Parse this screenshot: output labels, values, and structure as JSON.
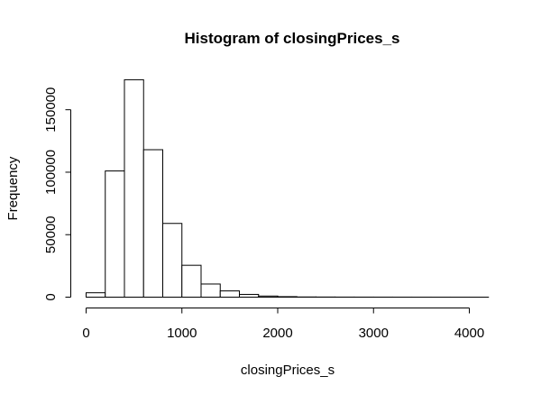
{
  "chart_data": {
    "type": "bar",
    "title": "Histogram of closingPrices_s",
    "xlabel": "closingPrices_s",
    "ylabel": "Frequency",
    "bin_width": 200,
    "bins": [
      {
        "start": 0,
        "end": 200,
        "count": 3500
      },
      {
        "start": 200,
        "end": 400,
        "count": 101000
      },
      {
        "start": 400,
        "end": 600,
        "count": 174000
      },
      {
        "start": 600,
        "end": 800,
        "count": 118000
      },
      {
        "start": 800,
        "end": 1000,
        "count": 59000
      },
      {
        "start": 1000,
        "end": 1200,
        "count": 25500
      },
      {
        "start": 1200,
        "end": 1400,
        "count": 10500
      },
      {
        "start": 1400,
        "end": 1600,
        "count": 5000
      },
      {
        "start": 1600,
        "end": 1800,
        "count": 2200
      },
      {
        "start": 1800,
        "end": 2000,
        "count": 900
      },
      {
        "start": 2000,
        "end": 2200,
        "count": 400
      },
      {
        "start": 2200,
        "end": 2400,
        "count": 150
      },
      {
        "start": 2400,
        "end": 2600,
        "count": 100
      },
      {
        "start": 2600,
        "end": 2800,
        "count": 60
      },
      {
        "start": 2800,
        "end": 3000,
        "count": 40
      },
      {
        "start": 3000,
        "end": 3200,
        "count": 30
      },
      {
        "start": 3200,
        "end": 3400,
        "count": 20
      },
      {
        "start": 3400,
        "end": 3600,
        "count": 15
      },
      {
        "start": 3600,
        "end": 3800,
        "count": 10
      },
      {
        "start": 3800,
        "end": 4000,
        "count": 10
      },
      {
        "start": 4000,
        "end": 4200,
        "count": 5
      }
    ],
    "xlim": [
      0,
      4200
    ],
    "ylim": [
      0,
      174000
    ],
    "x_ticks": [
      0,
      1000,
      2000,
      3000,
      4000
    ],
    "y_ticks": [
      0,
      50000,
      100000,
      150000
    ],
    "grid": false,
    "legend": "none"
  }
}
